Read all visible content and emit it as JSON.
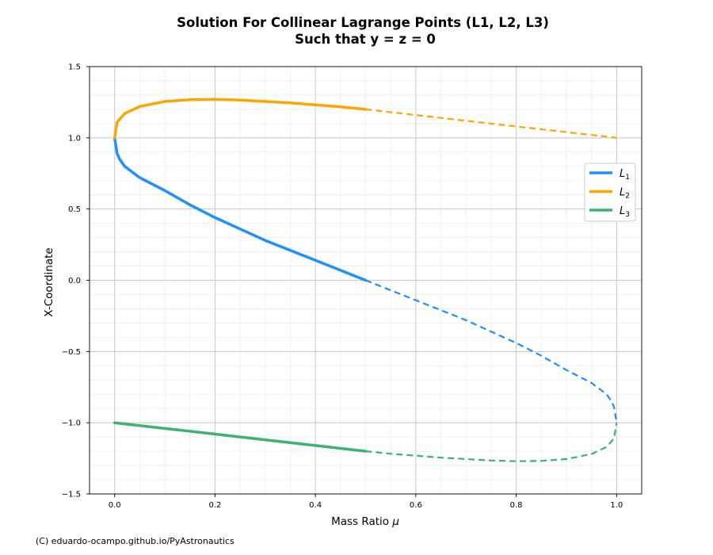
{
  "chart_data": {
    "type": "line",
    "title_lines": [
      "Solution For Collinear Lagrange Points (L1, L2, L3)",
      "Such that y = z = 0"
    ],
    "xlabel_text": "Mass Ratio ",
    "xlabel_symbol": "μ",
    "ylabel": "X-Coordinate",
    "xlim": [
      -0.05,
      1.05
    ],
    "ylim": [
      -1.5,
      1.5
    ],
    "x_ticks": [
      {
        "value": 0.0,
        "label": "0.0"
      },
      {
        "value": 0.2,
        "label": "0.2"
      },
      {
        "value": 0.4,
        "label": "0.4"
      },
      {
        "value": 0.6,
        "label": "0.6"
      },
      {
        "value": 0.8,
        "label": "0.8"
      },
      {
        "value": 1.0,
        "label": "1.0"
      }
    ],
    "y_ticks": [
      {
        "value": 1.5,
        "label": "1.5"
      },
      {
        "value": 1.0,
        "label": "1.0"
      },
      {
        "value": 0.5,
        "label": "0.5"
      },
      {
        "value": 0.0,
        "label": "0.0"
      },
      {
        "value": -0.5,
        "label": "−0.5"
      },
      {
        "value": -1.0,
        "label": "−1.0"
      },
      {
        "value": -1.5,
        "label": "−1.5"
      }
    ],
    "x_minor_step": 0.05,
    "y_minor_step": 0.1,
    "grid": true,
    "legend_position": "center-right",
    "series": [
      {
        "name": "L",
        "subscript": "1",
        "color": "#1e90ff",
        "solid": [
          [
            0.0,
            1.0
          ],
          [
            0.005,
            0.89
          ],
          [
            0.01,
            0.85
          ],
          [
            0.02,
            0.8
          ],
          [
            0.05,
            0.72
          ],
          [
            0.1,
            0.63
          ],
          [
            0.15,
            0.53
          ],
          [
            0.2,
            0.44
          ],
          [
            0.25,
            0.36
          ],
          [
            0.3,
            0.28
          ],
          [
            0.35,
            0.21
          ],
          [
            0.4,
            0.14
          ],
          [
            0.45,
            0.07
          ],
          [
            0.5,
            0.0
          ]
        ],
        "dashed": [
          [
            0.5,
            0.0
          ],
          [
            0.55,
            -0.07
          ],
          [
            0.6,
            -0.14
          ],
          [
            0.65,
            -0.21
          ],
          [
            0.7,
            -0.28
          ],
          [
            0.75,
            -0.36
          ],
          [
            0.8,
            -0.44
          ],
          [
            0.85,
            -0.53
          ],
          [
            0.9,
            -0.63
          ],
          [
            0.95,
            -0.72
          ],
          [
            0.98,
            -0.8
          ],
          [
            0.99,
            -0.85
          ],
          [
            0.995,
            -0.89
          ],
          [
            1.0,
            -1.0
          ]
        ]
      },
      {
        "name": "L",
        "subscript": "2",
        "color": "#ffa500",
        "solid": [
          [
            0.0,
            1.0
          ],
          [
            0.005,
            1.11
          ],
          [
            0.02,
            1.17
          ],
          [
            0.05,
            1.22
          ],
          [
            0.1,
            1.255
          ],
          [
            0.15,
            1.268
          ],
          [
            0.2,
            1.27
          ],
          [
            0.25,
            1.265
          ],
          [
            0.3,
            1.255
          ],
          [
            0.35,
            1.245
          ],
          [
            0.4,
            1.232
          ],
          [
            0.45,
            1.218
          ],
          [
            0.5,
            1.2
          ]
        ],
        "dashed": [
          [
            0.5,
            1.2
          ],
          [
            0.6,
            1.16
          ],
          [
            0.7,
            1.12
          ],
          [
            0.8,
            1.08
          ],
          [
            0.9,
            1.04
          ],
          [
            1.0,
            1.0
          ]
        ]
      },
      {
        "name": "L",
        "subscript": "3",
        "color": "#3cb371",
        "solid": [
          [
            0.0,
            -1.0
          ],
          [
            0.1,
            -1.04
          ],
          [
            0.2,
            -1.08
          ],
          [
            0.3,
            -1.12
          ],
          [
            0.4,
            -1.16
          ],
          [
            0.5,
            -1.2
          ]
        ],
        "dashed": [
          [
            0.5,
            -1.2
          ],
          [
            0.55,
            -1.218
          ],
          [
            0.6,
            -1.232
          ],
          [
            0.65,
            -1.245
          ],
          [
            0.7,
            -1.255
          ],
          [
            0.75,
            -1.265
          ],
          [
            0.8,
            -1.27
          ],
          [
            0.85,
            -1.268
          ],
          [
            0.9,
            -1.255
          ],
          [
            0.95,
            -1.22
          ],
          [
            0.98,
            -1.17
          ],
          [
            0.995,
            -1.11
          ],
          [
            1.0,
            -1.0
          ]
        ]
      }
    ]
  },
  "footer": {
    "credit": "(C) eduardo-ocampo.github.io/PyAstronautics"
  }
}
